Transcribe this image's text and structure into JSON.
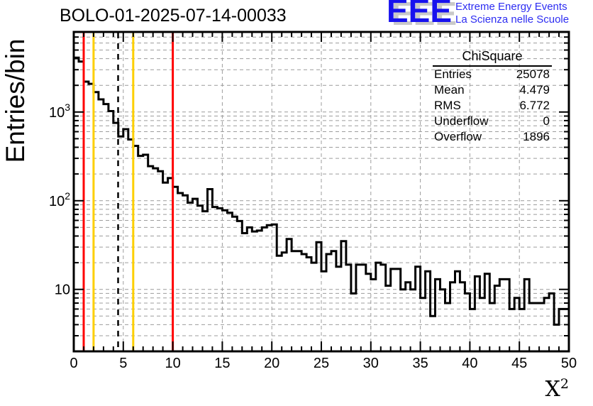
{
  "title": "BOLO-01-2025-07-14-00033",
  "logo": {
    "acronym": "EEE",
    "line1": "Extreme Energy Events",
    "line2": "La Scienza nelle Scuole",
    "blue": "#1812ee",
    "text_blue": "#2d2df2",
    "shadow_gray": "#c9c9c9"
  },
  "stats": {
    "title": "ChiSquare",
    "rows": [
      [
        "Entries",
        "25078"
      ],
      [
        "Mean",
        "4.479"
      ],
      [
        "RMS",
        "6.772"
      ],
      [
        "Underflow",
        "0"
      ],
      [
        "Overflow",
        "1896"
      ]
    ]
  },
  "chart_data": {
    "type": "bar",
    "style": "step-histogram",
    "title": "BOLO-01-2025-07-14-00033",
    "xlabel": "X",
    "xlabel_sup": "2",
    "ylabel": "Entries/bin",
    "yscale": "log",
    "xlim": [
      0,
      50
    ],
    "ylim": [
      2,
      8000
    ],
    "grid": true,
    "grid_color": "#9c9c9c",
    "line_color": "#000000",
    "x_major_ticks": [
      0,
      5,
      10,
      15,
      20,
      25,
      30,
      35,
      40,
      45,
      50
    ],
    "x_tick_labels": [
      "0",
      "5",
      "10",
      "15",
      "20",
      "25",
      "30",
      "35",
      "40",
      "45",
      "50"
    ],
    "x_minor_step": 1,
    "y_decades": [
      10,
      100,
      1000
    ],
    "y_tick_labels": [
      {
        "base": "10",
        "exp": ""
      },
      {
        "base": "10",
        "exp": "2"
      },
      {
        "base": "10",
        "exp": "3"
      }
    ],
    "bin_start": 0,
    "bin_width": 0.5,
    "values": [
      4100,
      3700,
      2200,
      2080,
      1680,
      1390,
      1230,
      1025,
      755,
      530,
      640,
      490,
      415,
      320,
      330,
      245,
      232,
      215,
      160,
      180,
      143,
      122,
      115,
      95,
      105,
      88,
      76,
      135,
      85,
      82,
      78,
      73,
      66,
      59,
      43,
      50,
      45,
      46,
      50,
      53,
      54,
      24,
      26,
      37,
      27,
      27,
      25,
      23,
      20,
      34,
      16,
      25,
      27,
      18,
      35,
      19,
      9,
      19,
      19,
      15,
      13,
      20,
      19,
      11,
      17,
      17,
      10,
      12,
      10,
      18,
      8,
      16,
      5,
      13,
      10,
      7,
      12,
      16,
      12,
      9,
      6,
      14,
      8,
      15,
      7,
      11,
      13,
      13,
      6,
      8,
      6,
      13,
      7,
      7,
      7,
      8,
      9,
      4,
      6,
      6
    ],
    "marker_lines": [
      {
        "name": "red-cut-low",
        "x": 1,
        "color": "#ff0000",
        "style": "solid"
      },
      {
        "name": "yellow-cut-low",
        "x": 2,
        "color": "#fdcf00",
        "style": "solid"
      },
      {
        "name": "mean-line",
        "x": 4.479,
        "color": "#000000",
        "style": "dashed"
      },
      {
        "name": "yellow-cut-high",
        "x": 6,
        "color": "#fdcf00",
        "style": "solid"
      },
      {
        "name": "red-cut-high",
        "x": 10,
        "color": "#ff0000",
        "style": "solid"
      }
    ]
  }
}
